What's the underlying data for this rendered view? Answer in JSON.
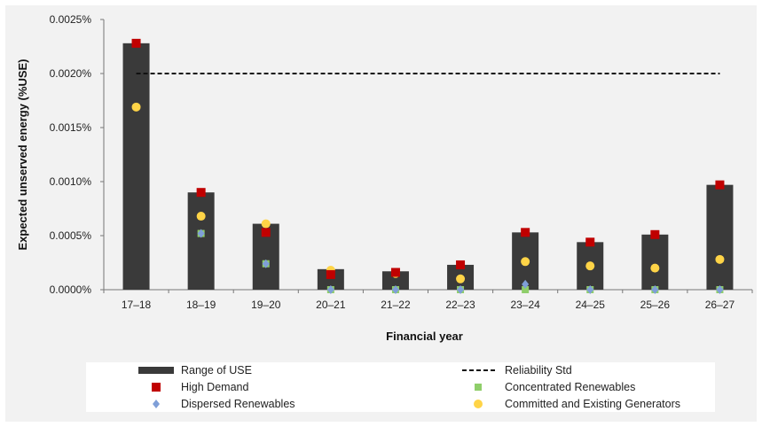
{
  "chart_data": {
    "type": "bar",
    "xlabel": "Financial year",
    "ylabel": "Expected unserved energy (%USE)",
    "ylim": [
      0,
      0.0025
    ],
    "yticks": [
      "0.0000%",
      "0.0005%",
      "0.0010%",
      "0.0015%",
      "0.0020%",
      "0.0025%"
    ],
    "ytick_values": [
      0,
      0.0005,
      0.001,
      0.0015,
      0.002,
      0.0025
    ],
    "categories": [
      "17–18",
      "18–19",
      "19–20",
      "20–21",
      "21–22",
      "22–23",
      "23–24",
      "24–25",
      "25–26",
      "26–27"
    ],
    "grid": false,
    "legend_position": "bottom",
    "series": [
      {
        "name": "Range of USE",
        "kind": "bar",
        "color": "#3a3a3a",
        "low": [
          0,
          0,
          0,
          0,
          0,
          0,
          0,
          0,
          0,
          0
        ],
        "high": [
          0.00228,
          0.0009,
          0.00061,
          0.00019,
          0.00017,
          0.00023,
          0.00053,
          0.00044,
          0.00051,
          0.00097
        ]
      },
      {
        "name": "High Demand",
        "kind": "square-marker",
        "color": "#c00000",
        "values": [
          0.00228,
          0.0009,
          0.00053,
          0.00014,
          0.00016,
          0.00023,
          0.00053,
          0.00044,
          0.00051,
          0.00097
        ]
      },
      {
        "name": "Concentrated Renewables",
        "kind": "small-square-marker",
        "color": "#8fce6a",
        "values": [
          null,
          0.00052,
          0.00024,
          0.0,
          0.0,
          0.0,
          0.0,
          0.0,
          0.0,
          0.0
        ]
      },
      {
        "name": "Dispersed Renewables",
        "kind": "diamond-marker",
        "color": "#7f9fd8",
        "values": [
          null,
          0.00052,
          0.00024,
          0.0,
          0.0,
          0.0,
          5e-05,
          0.0,
          0.0,
          0.0
        ]
      },
      {
        "name": "Committed and Existing Generators",
        "kind": "circle-marker",
        "color": "#ffd447",
        "values": [
          0.00169,
          0.00068,
          0.00061,
          0.00018,
          0.00015,
          0.0001,
          0.00026,
          0.00022,
          0.0002,
          0.00028
        ]
      },
      {
        "name": "Reliability Std",
        "kind": "dashed-line",
        "color": "#111111",
        "value": 0.002
      }
    ],
    "legend": {
      "left_column": [
        "Range of USE",
        "High Demand",
        "Dispersed Renewables"
      ],
      "right_column": [
        "Reliability Std",
        "Concentrated Renewables",
        "Committed and Existing Generators"
      ]
    }
  }
}
